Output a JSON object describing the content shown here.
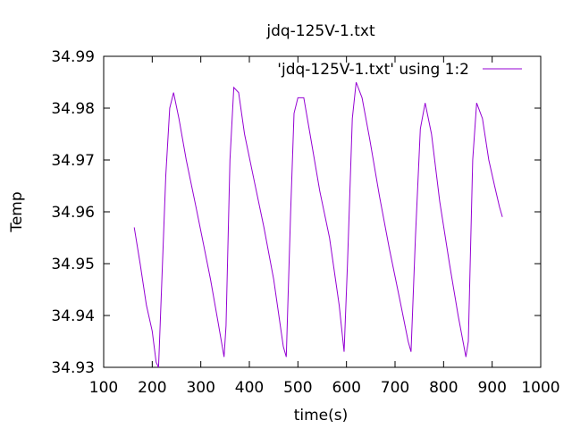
{
  "chart_data": {
    "type": "line",
    "title": "jdq-125V-1.txt",
    "xlabel": "time(s)",
    "ylabel": "Temp",
    "xlim": [
      100,
      1000
    ],
    "ylim": [
      34.93,
      34.99
    ],
    "x_ticks": [
      "100",
      "200",
      "300",
      "400",
      "500",
      "600",
      "700",
      "800",
      "900",
      "1000"
    ],
    "y_ticks": [
      "34.93",
      "34.94",
      "34.95",
      "34.96",
      "34.97",
      "34.98",
      "34.99"
    ],
    "grid": false,
    "legend_position": "top-right",
    "series": [
      {
        "name": "'jdq-125V-1.txt' using 1:2",
        "color": "#9400d3",
        "points": [
          [
            163,
            34.957
          ],
          [
            175,
            34.95
          ],
          [
            188,
            34.942
          ],
          [
            200,
            34.937
          ],
          [
            208,
            34.931
          ],
          [
            213,
            34.93
          ],
          [
            219,
            34.945
          ],
          [
            228,
            34.967
          ],
          [
            236,
            34.98
          ],
          [
            244,
            34.983
          ],
          [
            255,
            34.978
          ],
          [
            270,
            34.97
          ],
          [
            290,
            34.961
          ],
          [
            305,
            34.954
          ],
          [
            320,
            34.947
          ],
          [
            335,
            34.939
          ],
          [
            348,
            34.932
          ],
          [
            352,
            34.938
          ],
          [
            360,
            34.97
          ],
          [
            368,
            34.984
          ],
          [
            378,
            34.983
          ],
          [
            390,
            34.975
          ],
          [
            410,
            34.966
          ],
          [
            430,
            34.957
          ],
          [
            450,
            34.947
          ],
          [
            470,
            34.934
          ],
          [
            476,
            34.932
          ],
          [
            485,
            34.96
          ],
          [
            492,
            34.979
          ],
          [
            500,
            34.982
          ],
          [
            512,
            34.982
          ],
          [
            525,
            34.975
          ],
          [
            545,
            34.964
          ],
          [
            565,
            34.955
          ],
          [
            585,
            34.942
          ],
          [
            595,
            34.933
          ],
          [
            602,
            34.95
          ],
          [
            612,
            34.978
          ],
          [
            620,
            34.985
          ],
          [
            632,
            34.982
          ],
          [
            648,
            34.974
          ],
          [
            668,
            34.963
          ],
          [
            688,
            34.953
          ],
          [
            710,
            34.943
          ],
          [
            727,
            34.935
          ],
          [
            733,
            34.933
          ],
          [
            742,
            34.955
          ],
          [
            752,
            34.976
          ],
          [
            762,
            34.981
          ],
          [
            775,
            34.975
          ],
          [
            792,
            34.962
          ],
          [
            812,
            34.95
          ],
          [
            830,
            34.94
          ],
          [
            846,
            34.932
          ],
          [
            851,
            34.935
          ],
          [
            860,
            34.97
          ],
          [
            868,
            34.981
          ],
          [
            880,
            34.978
          ],
          [
            893,
            34.97
          ],
          [
            905,
            34.965
          ],
          [
            915,
            34.961
          ],
          [
            921,
            34.959
          ]
        ]
      }
    ]
  }
}
